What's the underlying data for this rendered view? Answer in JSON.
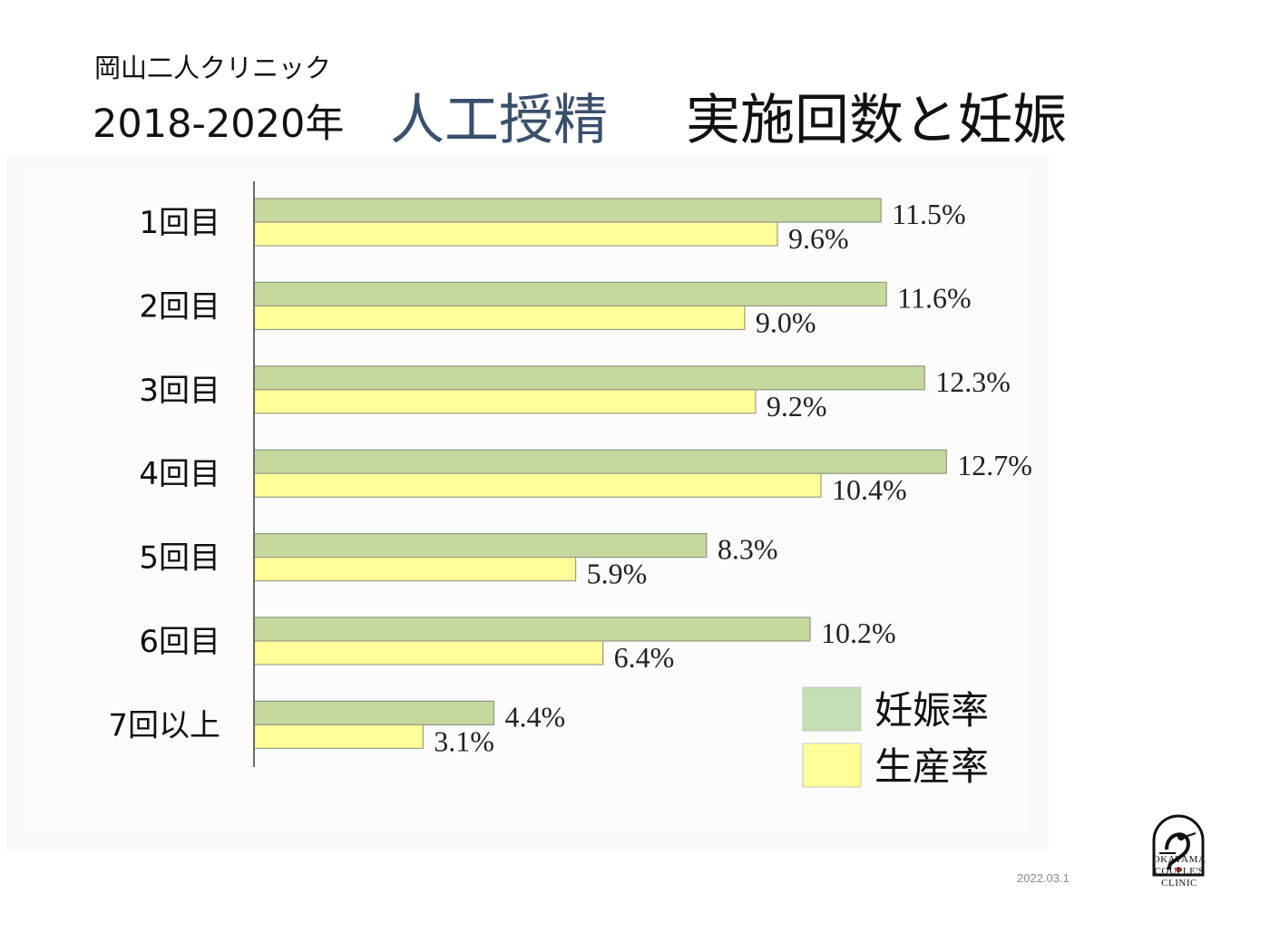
{
  "header": {
    "clinic_name": "岡山二人クリニック",
    "year_range": "2018-2020年",
    "title_part1": "人工授精",
    "title_part2": "実施回数と妊娠"
  },
  "footer": {
    "date": "2022.03.1",
    "logo_text_lines": [
      "OKAYAMA",
      "COUPLE'S",
      "CLINIC"
    ]
  },
  "colors": {
    "pregnancy": "#c5d99e",
    "birth": "#feff99",
    "title_accent": "#3a4f6a"
  },
  "chart_data": {
    "type": "bar",
    "orientation": "horizontal",
    "categories": [
      "1回目",
      "2回目",
      "3回目",
      "4回目",
      "5回目",
      "6回目",
      "7回以上"
    ],
    "series": [
      {
        "name": "妊娠率",
        "values": [
          11.5,
          11.6,
          12.3,
          12.7,
          8.3,
          10.2,
          4.4
        ],
        "labels": [
          "11.5%",
          "11.6%",
          "12.3%",
          "12.7%",
          "8.3%",
          "10.2%",
          "4.4%"
        ]
      },
      {
        "name": "生産率",
        "values": [
          9.6,
          9.0,
          9.2,
          10.4,
          5.9,
          6.4,
          3.1
        ],
        "labels": [
          "9.6%",
          "9.0%",
          "9.2%",
          "10.4%",
          "5.9%",
          "6.4%",
          "3.1%"
        ]
      }
    ],
    "title": "",
    "xlabel": "",
    "ylabel": "",
    "xlim": [
      0,
      14
    ],
    "grid": false,
    "legend": "bottom-right",
    "unit": "%"
  }
}
